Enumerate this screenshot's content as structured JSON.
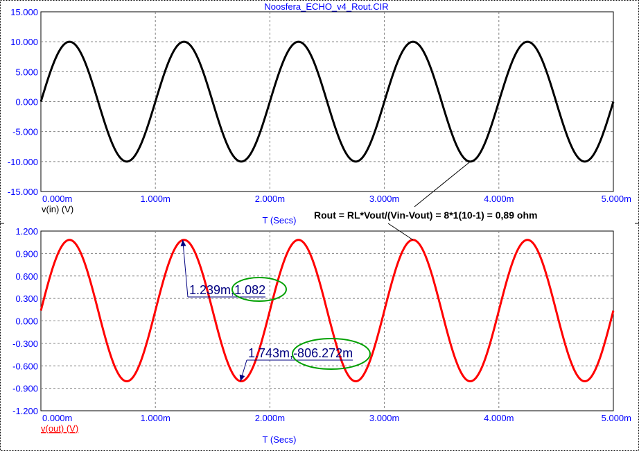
{
  "window": {
    "title": "Noosfera_ECHO_v4_Rout.CIR"
  },
  "chart_data": [
    {
      "type": "line",
      "title": "Noosfera_ECHO_v4_Rout.CIR",
      "xlabel": "T (Secs)",
      "ylabel": "v(in) (V)",
      "xlim": [
        0,
        5.0
      ],
      "ylim": [
        -15,
        15
      ],
      "x_unit": "ms",
      "x_tick_labels": [
        "0.000m",
        "1.000m",
        "2.000m",
        "3.000m",
        "4.000m",
        "5.000m"
      ],
      "y_tick_labels": [
        "15.000",
        "10.000",
        "5.000",
        "0.000",
        "-5.000",
        "-10.000",
        "-15.000"
      ],
      "grid": true,
      "series": [
        {
          "name": "v(in) (V)",
          "color": "#000000",
          "amplitude": 10,
          "offset": 0,
          "period_ms": 1.0
        }
      ]
    },
    {
      "type": "line",
      "xlabel": "T (Secs)",
      "ylabel": "v(out) (V)",
      "xlim": [
        0,
        5.0
      ],
      "ylim": [
        -1.2,
        1.2
      ],
      "x_unit": "ms",
      "x_tick_labels": [
        "0.000m",
        "1.000m",
        "2.000m",
        "3.000m",
        "4.000m",
        "5.000m"
      ],
      "y_tick_labels": [
        "1.200",
        "0.900",
        "0.600",
        "0.300",
        "0.000",
        "-0.300",
        "-0.600",
        "-0.900",
        "-1.200"
      ],
      "grid": true,
      "series": [
        {
          "name": "v(out) (V)",
          "color": "#ff0000",
          "max": 1.082,
          "min": -0.806272,
          "period_ms": 1.0
        }
      ],
      "cursors": [
        {
          "x": 1.239,
          "y": 1.082,
          "label_time": "1.239m",
          "label_value": "1.082"
        },
        {
          "x": 1.743,
          "y": -0.806272,
          "label_time": "1.743m",
          "label_value": "-806.272m"
        }
      ]
    }
  ],
  "annotation": {
    "text": "Rout = RL*Vout/(Vin-Vout) = 8*1(10-1) = 0,89 ohm",
    "point_top": {
      "x": 3.75,
      "y": -10
    },
    "point_bottom": {
      "x": 3.25,
      "y": 1.082
    }
  },
  "colors": {
    "axis_text": "#0000ff",
    "grid": "#808080",
    "annotation_arrow": "#000080",
    "highlight_ellipse": "#00a000"
  }
}
